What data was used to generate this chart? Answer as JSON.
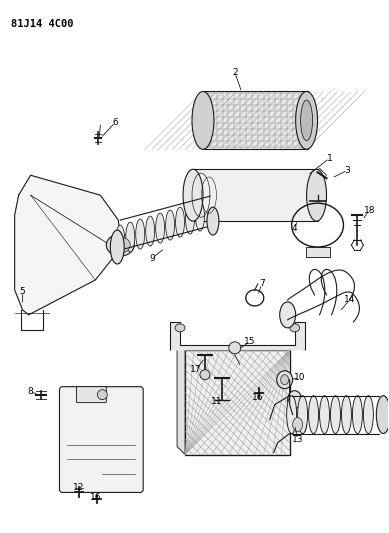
{
  "title": "81J14 4C00",
  "bg_color": "#ffffff",
  "line_color": "#1a1a1a",
  "text_color": "#000000",
  "fig_width": 3.89,
  "fig_height": 5.33,
  "dpi": 100
}
